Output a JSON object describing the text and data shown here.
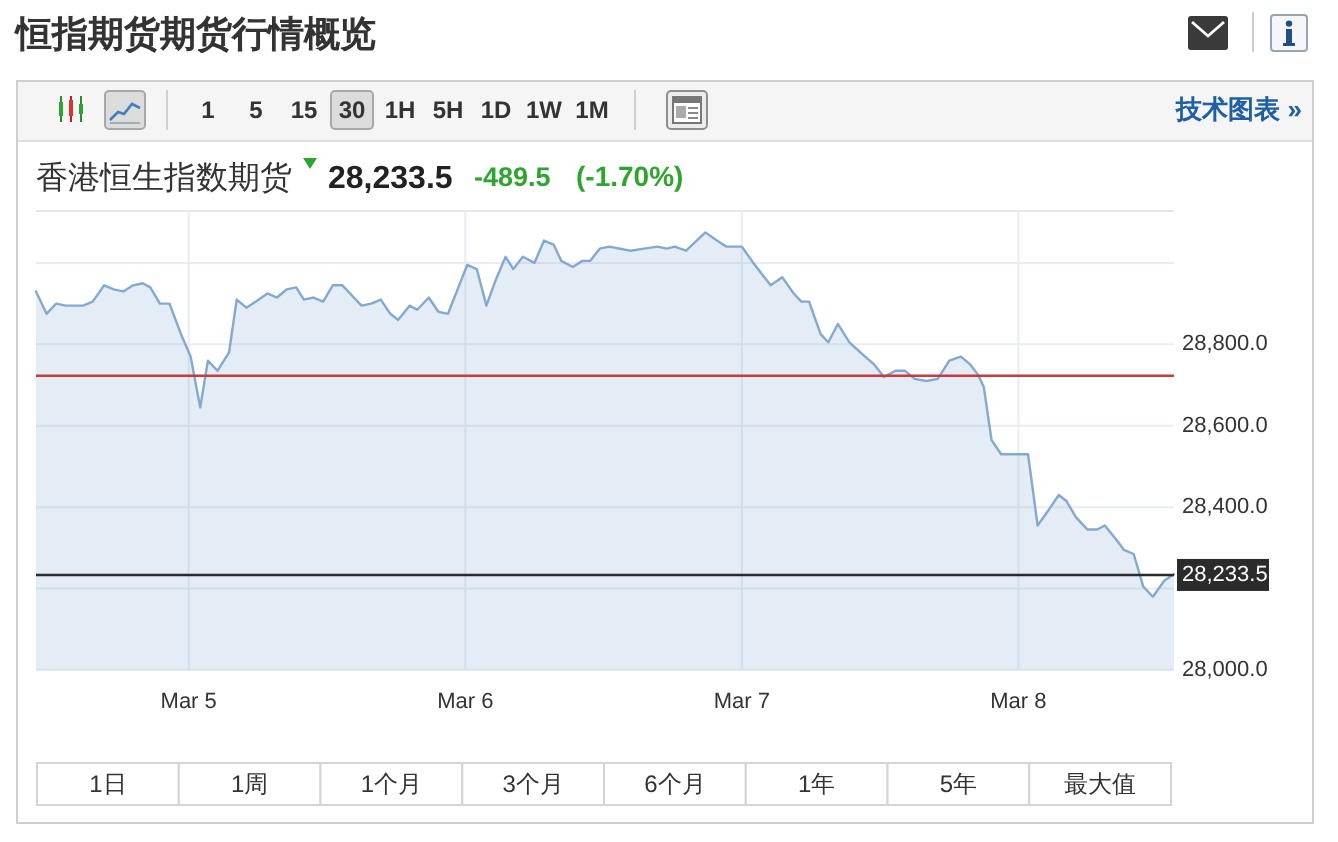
{
  "chart_data": {
    "type": "area",
    "title": "恒指期货期货行情概览",
    "subtitle": "香港恒生指数期货",
    "annotations": [
      "1",
      "5",
      "15",
      "30",
      "1H",
      "5H",
      "1D",
      "1W",
      "1M",
      "技术图表 »",
      "28,233.5",
      "-489.5",
      "(-1.70%)",
      "1日",
      "1周",
      "1个月",
      "3个月",
      "6个月",
      "1年",
      "5年",
      "最大值"
    ],
    "series": [
      {
        "color": "#84a9d1",
        "x": [
          "--03-04T10:45",
          "--03-04T11:40",
          "--03-04T12:30",
          "--03-04T13:20",
          "--03-04T14:00",
          "--03-04T14:50",
          "--03-04T15:40",
          "--03-04T16:40",
          "--03-04T17:30",
          "--03-04T18:20",
          "--03-04T19:10",
          "--03-04T20:00",
          "--03-04T20:40",
          "--03-04T21:30",
          "--03-04T22:20",
          "--03-04T23:20",
          "--03-05T00:10",
          "--03-05T01:00",
          "--03-05T01:40",
          "--03-05T02:30",
          "--03-05T03:30",
          "--03-05T04:10",
          "--03-05T05:00",
          "--03-05T05:50",
          "--03-05T06:50",
          "--03-05T07:40",
          "--03-05T08:30",
          "--03-05T09:20",
          "--03-05T10:00",
          "--03-05T10:50",
          "--03-05T11:40",
          "--03-05T12:30",
          "--03-05T13:20",
          "--03-05T14:10",
          "--03-05T15:00",
          "--03-05T15:50",
          "--03-05T16:40",
          "--03-05T17:30",
          "--03-05T18:10",
          "--03-05T19:10",
          "--03-05T19:50",
          "--03-05T20:50",
          "--03-05T21:40",
          "--03-05T22:30",
          "--03-05T23:20",
          "--03-06T00:10",
          "--03-06T01:00",
          "--03-06T01:50",
          "--03-06T02:40",
          "--03-06T03:30",
          "--03-06T04:10",
          "--03-06T05:00",
          "--03-06T06:00",
          "--03-06T06:50",
          "--03-06T07:40",
          "--03-06T08:20",
          "--03-06T09:20",
          "--03-06T10:10",
          "--03-06T10:50",
          "--03-06T11:40",
          "--03-06T12:30",
          "--03-06T14:20",
          "--03-06T15:30",
          "--03-06T16:40",
          "--03-06T17:30",
          "--03-06T18:10",
          "--03-06T19:10",
          "--03-06T20:50",
          "--03-06T21:50",
          "--03-06T22:40",
          "--03-07T00:00",
          "--03-07T01:00",
          "--03-07T02:30",
          "--03-07T03:30",
          "--03-07T04:30",
          "--03-07T05:10",
          "--03-07T05:50",
          "--03-07T06:50",
          "--03-07T07:30",
          "--03-07T08:20",
          "--03-07T09:20",
          "--03-07T10:30",
          "--03-07T11:30",
          "--03-07T12:20",
          "--03-07T13:20",
          "--03-07T14:10",
          "--03-07T15:00",
          "--03-07T16:00",
          "--03-07T17:00",
          "--03-07T18:00",
          "--03-07T19:00",
          "--03-07T19:50",
          "--03-07T20:30",
          "--03-07T21:00",
          "--03-07T21:40",
          "--03-07T22:30",
          "--03-07T23:50",
          "--03-08T00:50",
          "--03-08T01:40",
          "--03-08T02:40",
          "--03-08T03:30",
          "--03-08T04:10",
          "--03-08T05:00",
          "--03-08T06:00",
          "--03-08T06:50",
          "--03-08T07:30",
          "--03-08T08:30",
          "--03-08T09:10",
          "--03-08T10:00",
          "--03-08T10:50",
          "--03-08T11:40",
          "--03-08T12:40",
          "--03-08T13:30"
        ],
        "values": [
          28930,
          28875,
          28900,
          28895,
          28895,
          28895,
          28905,
          28945,
          28935,
          28930,
          28945,
          28950,
          28940,
          28900,
          28900,
          28825,
          28770,
          28645,
          28760,
          28735,
          28780,
          28910,
          28890,
          28905,
          28925,
          28915,
          28935,
          28940,
          28910,
          28915,
          28905,
          28945,
          28945,
          28920,
          28895,
          28900,
          28910,
          28875,
          28860,
          28895,
          28885,
          28915,
          28880,
          28875,
          28935,
          28995,
          28985,
          28895,
          28960,
          29015,
          28985,
          29015,
          29000,
          29055,
          29045,
          29005,
          28990,
          29005,
          29005,
          29035,
          29040,
          29030,
          29035,
          29040,
          29035,
          29040,
          29030,
          29075,
          29055,
          29040,
          29040,
          29000,
          28945,
          28965,
          28925,
          28905,
          28905,
          28825,
          28805,
          28850,
          28805,
          28775,
          28750,
          28720,
          28735,
          28735,
          28715,
          28710,
          28715,
          28760,
          28770,
          28750,
          28725,
          28695,
          28565,
          28530,
          28530,
          28530,
          28355,
          28395,
          28430,
          28415,
          28375,
          28345,
          28345,
          28355,
          28320,
          28295,
          28285,
          28205,
          28180,
          28220,
          28235
        ]
      }
    ],
    "xlim": [
      "--03-04T10:45",
      "--03-08T13:30"
    ],
    "xticks": [
      {
        "value": "--03-05",
        "label": "Mar 5"
      },
      {
        "value": "--03-06",
        "label": "Mar 6"
      },
      {
        "value": "--03-07",
        "label": "Mar 7"
      },
      {
        "value": "--03-08",
        "label": "Mar 8"
      }
    ],
    "ylim": [
      28000,
      29130
    ],
    "yticks": [
      {
        "value": 28000,
        "label": "28,000.0"
      },
      {
        "value": 28200,
        "label": null
      },
      {
        "value": 28400,
        "label": "28,400.0"
      },
      {
        "value": 28600,
        "label": "28,600.0"
      },
      {
        "value": 28800,
        "label": "28,800.0"
      },
      {
        "value": 29000,
        "label": null
      }
    ],
    "grid": true,
    "ref_lines": [
      {
        "axis": "y",
        "value": 28723,
        "color": "#cc3b3b"
      },
      {
        "axis": "y",
        "value": 28233.5,
        "label": "28,233.5",
        "color": "#2b2b2b"
      }
    ]
  }
}
